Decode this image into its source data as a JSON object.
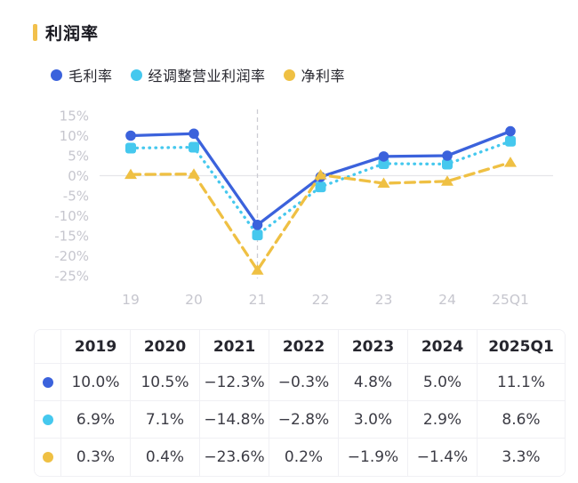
{
  "title": "利润率",
  "accent_color": "#F2C04C",
  "legend": {
    "items": [
      {
        "label": "毛利率",
        "color": "#3B62DC"
      },
      {
        "label": "经调整营业利润率",
        "color": "#45C8EE"
      },
      {
        "label": "净利率",
        "color": "#EFC043"
      }
    ]
  },
  "chart_data": {
    "type": "line",
    "title": "利润率",
    "categories": [
      "19",
      "20",
      "21",
      "22",
      "23",
      "24",
      "25Q1"
    ],
    "series": [
      {
        "name": "毛利率",
        "color": "#3B62DC",
        "marker": "circle",
        "line_style": "solid",
        "values": [
          10.0,
          10.5,
          -12.3,
          -0.3,
          4.8,
          5.0,
          11.1
        ]
      },
      {
        "name": "经调整营业利润率",
        "color": "#45C8EE",
        "marker": "square",
        "line_style": "dotted",
        "values": [
          6.9,
          7.1,
          -14.8,
          -2.8,
          3.0,
          2.9,
          8.6
        ]
      },
      {
        "name": "净利率",
        "color": "#EFC043",
        "marker": "triangle",
        "line_style": "dashed",
        "values": [
          0.3,
          0.4,
          -23.6,
          0.2,
          -1.9,
          -1.4,
          3.3
        ]
      }
    ],
    "y_ticks": [
      "15%",
      "10%",
      "5%",
      "0%",
      "-5%",
      "-10%",
      "-15%",
      "-20%",
      "-25%"
    ],
    "y_tick_values": [
      15,
      10,
      5,
      0,
      -5,
      -10,
      -15,
      -20,
      -25
    ],
    "ylim": [
      -27,
      17
    ],
    "xlabel": "",
    "ylabel": "",
    "grid": "zero-line-only",
    "annotation_vline_category": "21",
    "legend_position": "top",
    "axis_label_color": "#C6C6CE",
    "zero_line_color": "#E5E5E9",
    "vline_color": "#CCCCD4"
  },
  "table": {
    "columns": [
      "",
      "2019",
      "2020",
      "2021",
      "2022",
      "2023",
      "2024",
      "2025Q1"
    ],
    "rows": [
      {
        "series": "毛利率",
        "dot_color": "#3B62DC",
        "values": [
          "10.0%",
          "10.5%",
          "−12.3%",
          "−0.3%",
          "4.8%",
          "5.0%",
          "11.1%"
        ]
      },
      {
        "series": "经调整营业利润率",
        "dot_color": "#45C8EE",
        "values": [
          "6.9%",
          "7.1%",
          "−14.8%",
          "−2.8%",
          "3.0%",
          "2.9%",
          "8.6%"
        ]
      },
      {
        "series": "净利率",
        "dot_color": "#EFC043",
        "values": [
          "0.3%",
          "0.4%",
          "−23.6%",
          "0.2%",
          "−1.9%",
          "−1.4%",
          "3.3%"
        ]
      }
    ]
  }
}
